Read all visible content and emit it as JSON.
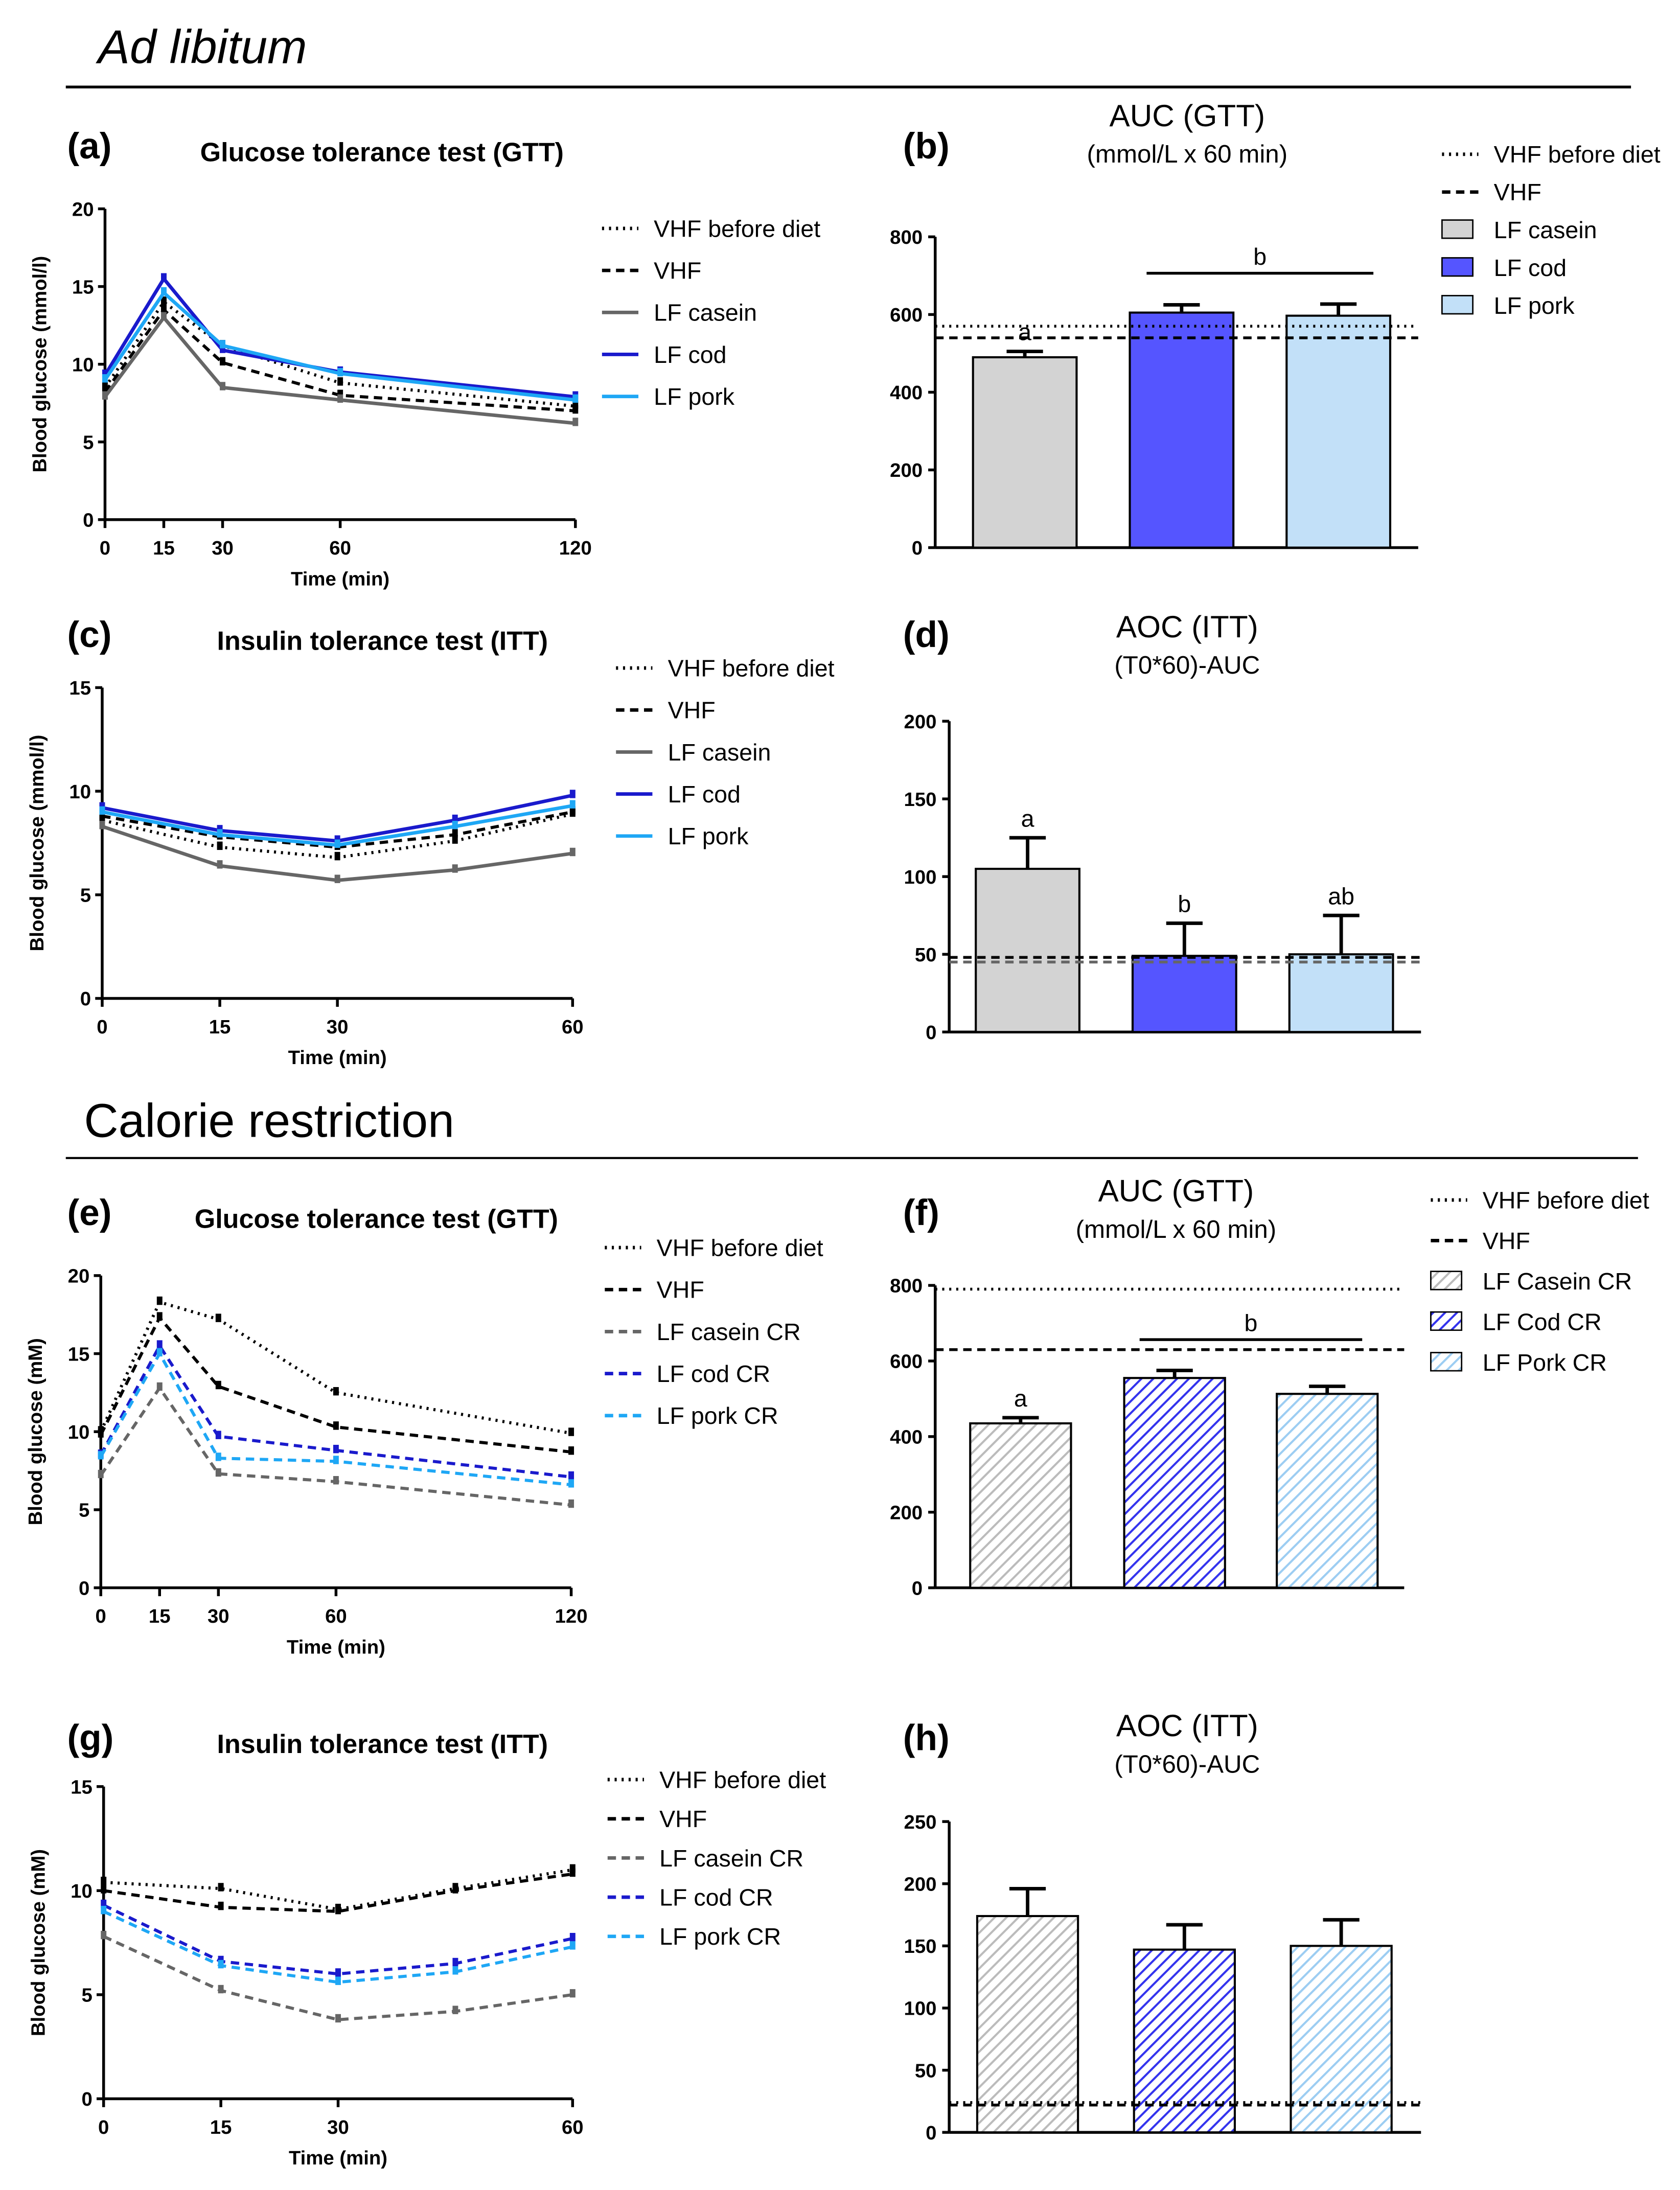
{
  "sections": {
    "ad_libitum": "Ad libitum",
    "calorie_restriction": "Calorie restriction"
  },
  "colors": {
    "vhf_before_diet": "#000000",
    "vhf": "#000000",
    "lf_casein": "#666666",
    "lf_cod": "#1a1acc",
    "lf_pork": "#1ea7f5",
    "bar_casein": "#d3d3d3",
    "bar_cod": "#5555ff",
    "bar_pork": "#c2e0f8",
    "cr_casein_cr": "#808080",
    "cr_cod_cr": "#1a1acc",
    "cr_pork_cr": "#1ea7f5"
  },
  "chart_data": [
    {
      "id": "a",
      "panel_label": "(a)",
      "type": "line",
      "title": "Glucose tolerance test (GTT)",
      "xlabel": "Time (min)",
      "ylabel": "Blood glucose (mmol/l)",
      "xlim": [
        0,
        120
      ],
      "ylim": [
        0,
        20
      ],
      "xticks": [
        0,
        15,
        30,
        60,
        120
      ],
      "yticks": [
        0,
        5,
        10,
        15,
        20
      ],
      "x": [
        0,
        15,
        30,
        60,
        120
      ],
      "legend": "right",
      "series": [
        {
          "name": "VHF before diet",
          "style": "dotted",
          "color": "#000000",
          "values": [
            8.5,
            14.0,
            11.2,
            8.8,
            7.3
          ]
        },
        {
          "name": "VHF",
          "style": "dashed",
          "color": "#000000",
          "values": [
            8.2,
            13.5,
            10.1,
            8.0,
            7.0
          ]
        },
        {
          "name": "LF casein",
          "style": "solid",
          "color": "#666666",
          "values": [
            7.9,
            13.0,
            8.5,
            7.7,
            6.2
          ]
        },
        {
          "name": "LF cod",
          "style": "solid",
          "color": "#1a1acc",
          "values": [
            9.3,
            15.5,
            10.9,
            9.5,
            7.9
          ]
        },
        {
          "name": "LF pork",
          "style": "solid",
          "color": "#1ea7f5",
          "values": [
            9.0,
            14.6,
            11.2,
            9.4,
            7.7
          ]
        }
      ]
    },
    {
      "id": "b",
      "panel_label": "(b)",
      "type": "bar",
      "title": "AUC (GTT)",
      "subtitle": "(mmol/L x 60 min)",
      "ylim": [
        0,
        800
      ],
      "yticks": [
        0,
        200,
        400,
        600,
        800
      ],
      "legend": "right",
      "reference_lines": [
        {
          "name": "VHF before diet",
          "style": "dotted",
          "value": 570
        },
        {
          "name": "VHF",
          "style": "dashed",
          "value": 540
        }
      ],
      "bars": [
        {
          "name": "LF casein",
          "value": 490,
          "error": 15,
          "color": "#d3d3d3",
          "fill": "solid",
          "letter": "a"
        },
        {
          "name": "LF cod",
          "value": 605,
          "error": 20,
          "color": "#5555ff",
          "fill": "solid",
          "letter": ""
        },
        {
          "name": "LF pork",
          "value": 597,
          "error": 30,
          "color": "#c2e0f8",
          "fill": "solid",
          "letter": ""
        }
      ],
      "group_letter": "b"
    },
    {
      "id": "c",
      "panel_label": "(c)",
      "type": "line",
      "title": "Insulin tolerance test (ITT)",
      "xlabel": "Time (min)",
      "ylabel": "Blood glucose (mmol/l)",
      "xlim": [
        0,
        60
      ],
      "ylim": [
        0,
        15
      ],
      "xticks": [
        0,
        15,
        30,
        60
      ],
      "yticks": [
        0,
        5,
        10,
        15
      ],
      "x": [
        0,
        15,
        30,
        45,
        60
      ],
      "legend": "right",
      "series": [
        {
          "name": "VHF before diet",
          "style": "dotted",
          "color": "#000000",
          "values": [
            8.6,
            7.3,
            6.8,
            7.6,
            8.9
          ]
        },
        {
          "name": "VHF",
          "style": "dashed",
          "color": "#000000",
          "values": [
            8.8,
            7.8,
            7.3,
            7.9,
            9.0
          ]
        },
        {
          "name": "LF casein",
          "style": "solid",
          "color": "#666666",
          "values": [
            8.3,
            6.4,
            5.7,
            6.2,
            7.0
          ]
        },
        {
          "name": "LF cod",
          "style": "solid",
          "color": "#1a1acc",
          "values": [
            9.2,
            8.1,
            7.6,
            8.6,
            9.8
          ]
        },
        {
          "name": "LF pork",
          "style": "solid",
          "color": "#1ea7f5",
          "values": [
            9.0,
            7.9,
            7.4,
            8.3,
            9.3
          ]
        }
      ]
    },
    {
      "id": "d",
      "panel_label": "(d)",
      "type": "bar",
      "title": "AOC (ITT)",
      "subtitle": "(T0*60)-AUC",
      "ylim": [
        0,
        200
      ],
      "yticks": [
        0,
        50,
        100,
        150,
        200
      ],
      "reference_lines": [
        {
          "name": "VHF before diet",
          "style": "dashed",
          "value": 48
        },
        {
          "name": "VHF",
          "style": "dashed-grey",
          "value": 45
        }
      ],
      "bars": [
        {
          "name": "LF casein",
          "value": 105,
          "error": 20,
          "color": "#d3d3d3",
          "fill": "solid",
          "letter": "a"
        },
        {
          "name": "LF cod",
          "value": 49,
          "error": 21,
          "color": "#5555ff",
          "fill": "solid",
          "letter": "b"
        },
        {
          "name": "LF pork",
          "value": 50,
          "error": 25,
          "color": "#c2e0f8",
          "fill": "solid",
          "letter": "ab"
        }
      ],
      "group_letter": ""
    },
    {
      "id": "e",
      "panel_label": "(e)",
      "type": "line",
      "title": "Glucose tolerance test (GTT)",
      "xlabel": "Time (min)",
      "ylabel": "Blood glucose (mM)",
      "xlim": [
        0,
        120
      ],
      "ylim": [
        0,
        20
      ],
      "xticks": [
        0,
        15,
        30,
        60,
        120
      ],
      "yticks": [
        0,
        5,
        10,
        15,
        20
      ],
      "x": [
        0,
        15,
        30,
        60,
        120
      ],
      "legend": "right",
      "series": [
        {
          "name": "VHF before diet",
          "style": "dotted",
          "color": "#000000",
          "values": [
            10.0,
            18.3,
            17.2,
            12.5,
            9.9
          ]
        },
        {
          "name": "VHF",
          "style": "dashed",
          "color": "#000000",
          "values": [
            9.8,
            17.3,
            12.9,
            10.3,
            8.7
          ]
        },
        {
          "name": "LF casein CR",
          "style": "dashed",
          "color": "#666666",
          "values": [
            7.2,
            12.8,
            7.3,
            6.8,
            5.3
          ]
        },
        {
          "name": "LF cod CR",
          "style": "dashed",
          "color": "#1a1acc",
          "values": [
            8.5,
            15.5,
            9.7,
            8.8,
            7.1
          ]
        },
        {
          "name": "LF pork CR",
          "style": "dashed",
          "color": "#1ea7f5",
          "values": [
            8.4,
            15.0,
            8.3,
            8.1,
            6.6
          ]
        }
      ]
    },
    {
      "id": "f",
      "panel_label": "(f)",
      "type": "bar",
      "title": "AUC (GTT)",
      "subtitle": "(mmol/L x 60 min)",
      "ylim": [
        0,
        800
      ],
      "yticks": [
        0,
        200,
        400,
        600,
        800
      ],
      "legend": "right",
      "reference_lines": [
        {
          "name": "VHF before diet",
          "style": "dotted",
          "value": 790
        },
        {
          "name": "VHF",
          "style": "dashed",
          "value": 630
        }
      ],
      "bars": [
        {
          "name": "LF Casein CR",
          "value": 435,
          "error": 15,
          "color": "#bbbbbb",
          "fill": "hatched",
          "letter": "a"
        },
        {
          "name": "LF Cod CR",
          "value": 555,
          "error": 20,
          "color": "#3333ee",
          "fill": "hatched",
          "letter": ""
        },
        {
          "name": "LF Pork CR",
          "value": 513,
          "error": 20,
          "color": "#9ccdf2",
          "fill": "hatched",
          "letter": ""
        }
      ],
      "group_letter": "b"
    },
    {
      "id": "g",
      "panel_label": "(g)",
      "type": "line",
      "title": "Insulin tolerance test (ITT)",
      "xlabel": "Time (min)",
      "ylabel": "Blood glucose (mM)",
      "xlim": [
        0,
        60
      ],
      "ylim": [
        0,
        15
      ],
      "xticks": [
        0,
        15,
        30,
        60
      ],
      "yticks": [
        0,
        5,
        10,
        15
      ],
      "x": [
        0,
        15,
        30,
        45,
        60
      ],
      "legend": "right",
      "series": [
        {
          "name": "VHF before diet",
          "style": "dotted",
          "color": "#000000",
          "values": [
            10.4,
            10.1,
            9.1,
            10.1,
            11.0
          ]
        },
        {
          "name": "VHF",
          "style": "dashed",
          "color": "#000000",
          "values": [
            10.0,
            9.2,
            9.0,
            10.0,
            10.8
          ]
        },
        {
          "name": "LF casein CR",
          "style": "dashed",
          "color": "#666666",
          "values": [
            7.8,
            5.2,
            3.8,
            4.2,
            5.0
          ]
        },
        {
          "name": "LF cod CR",
          "style": "dashed",
          "color": "#1a1acc",
          "values": [
            9.3,
            6.6,
            6.0,
            6.5,
            7.7
          ]
        },
        {
          "name": "LF pork CR",
          "style": "dashed",
          "color": "#1ea7f5",
          "values": [
            9.0,
            6.4,
            5.6,
            6.1,
            7.3
          ]
        }
      ]
    },
    {
      "id": "h",
      "panel_label": "(h)",
      "type": "bar",
      "title": "AOC (ITT)",
      "subtitle": "(T0*60)-AUC",
      "ylim": [
        0,
        250
      ],
      "yticks": [
        0,
        50,
        100,
        150,
        200,
        250
      ],
      "reference_lines": [
        {
          "name": "VHF before diet",
          "style": "dotted",
          "value": 24
        },
        {
          "name": "VHF",
          "style": "dashed",
          "value": 22
        }
      ],
      "bars": [
        {
          "name": "LF Casein CR",
          "value": 174,
          "error": 22,
          "color": "#bbbbbb",
          "fill": "hatched",
          "letter": ""
        },
        {
          "name": "LF Cod CR",
          "value": 147,
          "error": 20,
          "color": "#3333ee",
          "fill": "hatched",
          "letter": ""
        },
        {
          "name": "LF Pork CR",
          "value": 150,
          "error": 21,
          "color": "#9ccdf2",
          "fill": "hatched",
          "letter": ""
        }
      ],
      "group_letter": ""
    }
  ]
}
